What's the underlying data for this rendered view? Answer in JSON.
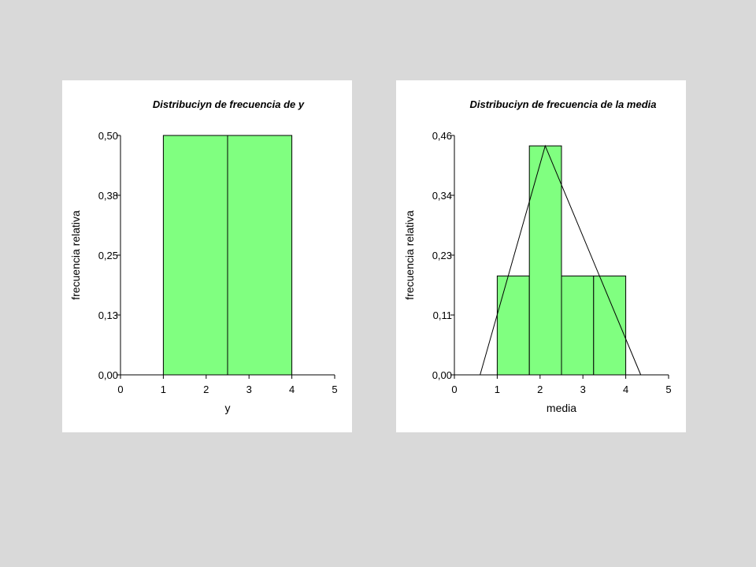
{
  "colors": {
    "page_background": "#d9d9d9",
    "panel_background": "#ffffff",
    "bar_fill": "#80ff80",
    "bar_stroke": "#000000"
  },
  "chart_data": [
    {
      "type": "bar",
      "title": "Distribuciyn de frecuencia de y",
      "xlabel": "y",
      "ylabel": "frecuencia relativa",
      "xlim": [
        0,
        5
      ],
      "ylim": [
        0,
        0.5
      ],
      "x_ticks": [
        "0",
        "1",
        "2",
        "3",
        "4",
        "5"
      ],
      "y_ticks": [
        "0,00",
        "0,13",
        "0,25",
        "0,38",
        "0,50"
      ],
      "bins": [
        {
          "start": 1.0,
          "end": 2.5,
          "value": 0.5
        },
        {
          "start": 2.5,
          "end": 4.0,
          "value": 0.5
        }
      ],
      "grid": false
    },
    {
      "type": "bar",
      "title": "Distribuciyn de frecuencia de la media",
      "xlabel": "media",
      "ylabel": "frecuencia relativa",
      "xlim": [
        0,
        5
      ],
      "ylim": [
        0,
        0.46
      ],
      "x_ticks": [
        "0",
        "1",
        "2",
        "3",
        "4",
        "5"
      ],
      "y_ticks": [
        "0,00",
        "0,11",
        "0,23",
        "0,34",
        "0,46"
      ],
      "bins": [
        {
          "start": 1.0,
          "end": 1.75,
          "value": 0.19
        },
        {
          "start": 1.75,
          "end": 2.5,
          "value": 0.44
        },
        {
          "start": 2.5,
          "end": 3.25,
          "value": 0.19
        },
        {
          "start": 3.25,
          "end": 4.0,
          "value": 0.19
        }
      ],
      "overlay_line": [
        {
          "x": 0.6,
          "y": 0.0
        },
        {
          "x": 2.12,
          "y": 0.44
        },
        {
          "x": 4.35,
          "y": 0.0
        }
      ],
      "grid": false
    }
  ]
}
